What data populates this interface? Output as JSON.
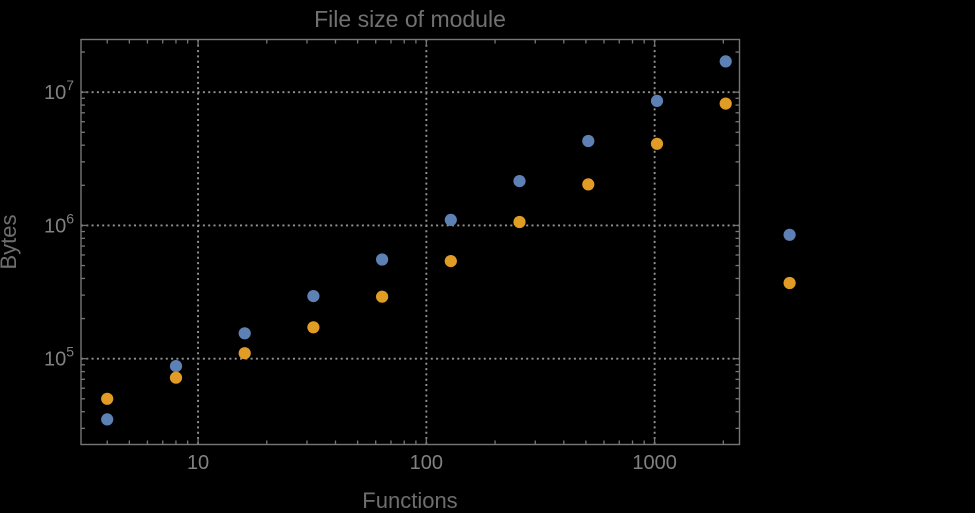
{
  "colors": {
    "background": "#000000",
    "frame": "#767676",
    "grid": "#949494",
    "tick_label": "#818181",
    "title_text": "#717171",
    "axis_label": "#6e6e6e",
    "series_blue": "#5E81B5",
    "series_orange": "#E09C24"
  },
  "chart_data": {
    "type": "scatter",
    "title": "File size of module",
    "xlabel": "Functions",
    "ylabel": "Bytes",
    "x_scale": "log",
    "y_scale": "log",
    "xlim": [
      3.07,
      2354
    ],
    "ylim": [
      22700,
      24840000
    ],
    "grid": "dotted lines at major ticks, both axes",
    "legend": "none",
    "x_major_ticks": [
      {
        "value": 10,
        "label": "10"
      },
      {
        "value": 100,
        "label": "100"
      },
      {
        "value": 1000,
        "label": "1000"
      }
    ],
    "y_major_ticks": [
      {
        "value": 100000,
        "base": "10",
        "exponent": "5"
      },
      {
        "value": 1000000,
        "base": "10",
        "exponent": "6"
      },
      {
        "value": 10000000,
        "base": "10",
        "exponent": "7"
      }
    ],
    "x": [
      4,
      8,
      16,
      32,
      64,
      128,
      256,
      512,
      1024,
      2048,
      3900
    ],
    "series": [
      {
        "name": "blue",
        "color": "#5E81B5",
        "values": [
          35000,
          88000,
          155000,
          295000,
          555000,
          1100000,
          2150000,
          4300000,
          8600000,
          17000000,
          850000
        ]
      },
      {
        "name": "orange",
        "color": "#E09C24",
        "values": [
          50000,
          72000,
          110000,
          172000,
          292000,
          540000,
          1060000,
          2030000,
          4100000,
          8200000,
          370000
        ]
      }
    ]
  }
}
